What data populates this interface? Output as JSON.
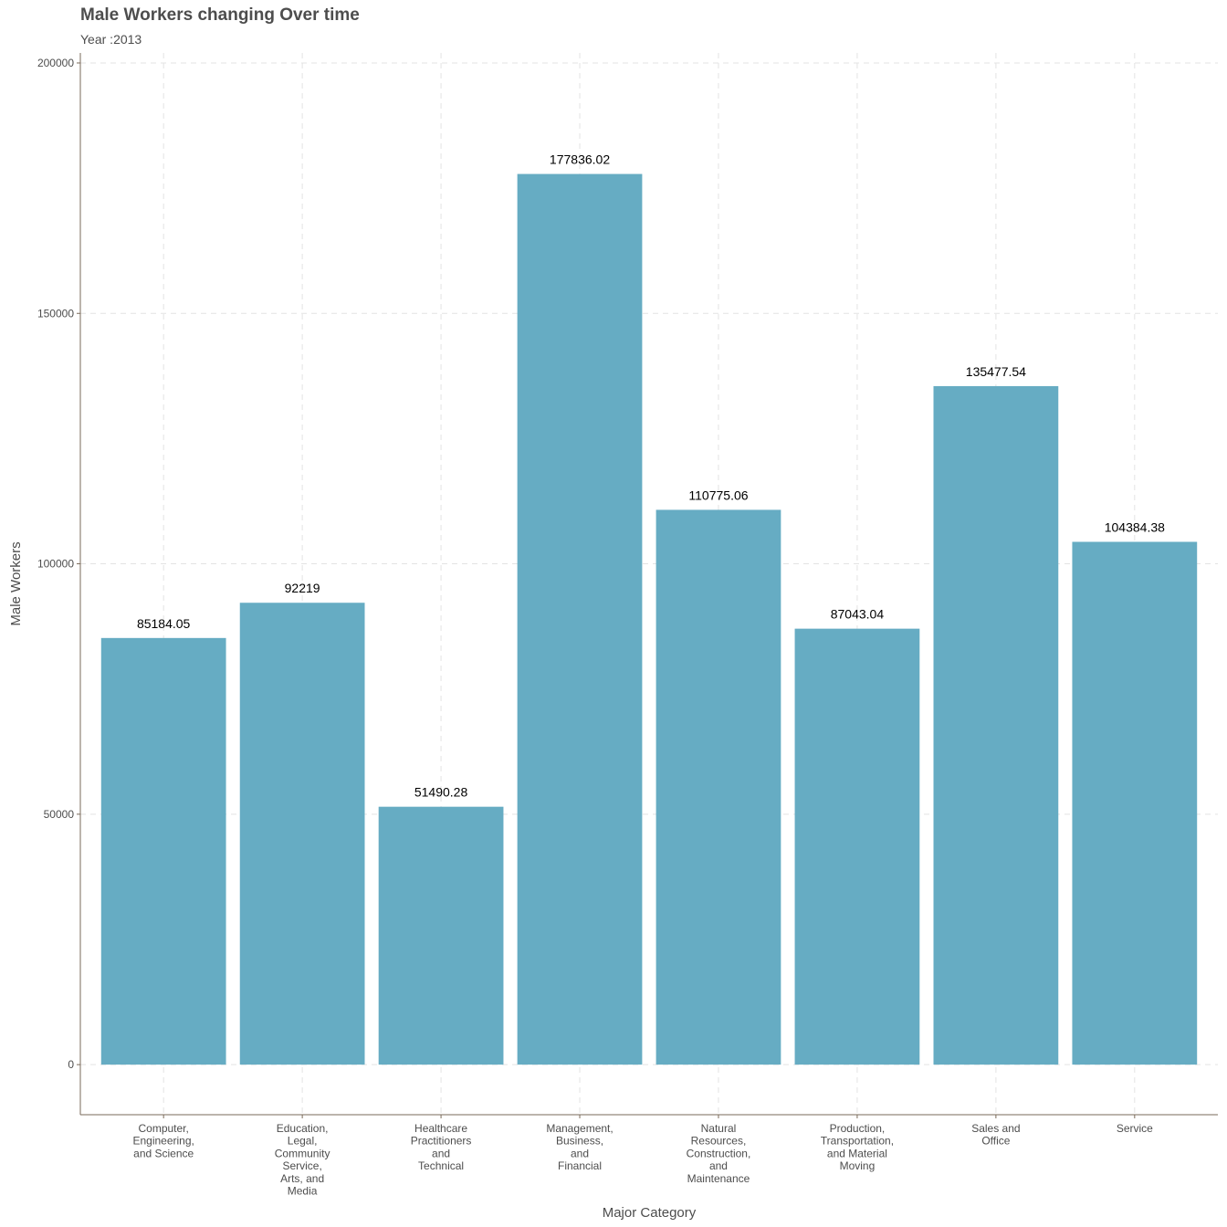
{
  "chart_data": {
    "type": "bar",
    "title": "Male Workers changing Over time",
    "subtitle": "Year :2013",
    "xlabel": "Major Category",
    "ylabel": "Male Workers",
    "ylim": [
      -10000,
      202000
    ],
    "yticks": [
      0,
      50000,
      100000,
      150000,
      200000
    ],
    "ytick_labels": [
      "0",
      "50000",
      "100000",
      "150000",
      "200000"
    ],
    "grid": true,
    "bar_color": "#66acc3",
    "categories": [
      [
        "Computer,",
        "Engineering,",
        "and Science"
      ],
      [
        "Education,",
        "Legal,",
        "Community",
        "Service,",
        "Arts, and",
        "Media"
      ],
      [
        "Healthcare",
        "Practitioners",
        "and",
        "Technical"
      ],
      [
        "Management,",
        "Business,",
        "and",
        "Financial"
      ],
      [
        "Natural",
        "Resources,",
        "Construction,",
        "and",
        "Maintenance"
      ],
      [
        "Production,",
        "Transportation,",
        "and Material",
        "Moving"
      ],
      [
        "Sales and",
        "Office"
      ],
      [
        "Service"
      ]
    ],
    "values": [
      85184.05,
      92219,
      51490.28,
      177836.02,
      110775.06,
      87043.04,
      135477.54,
      104384.38
    ],
    "value_labels": [
      "85184.05",
      "92219",
      "51490.28",
      "177836.02",
      "110775.06",
      "87043.04",
      "135477.54",
      "104384.38"
    ]
  }
}
